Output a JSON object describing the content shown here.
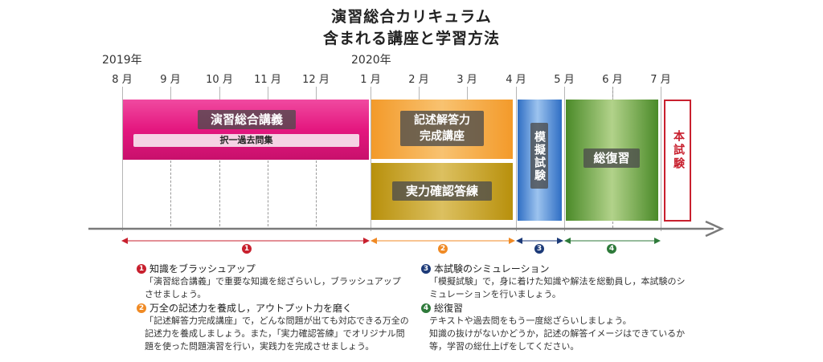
{
  "title": {
    "line1": "演習総合カリキュラム",
    "line2": "含まれる講座と学習方法"
  },
  "years": [
    "2019年",
    "2020年"
  ],
  "months": [
    "8 月",
    "9 月",
    "10 月",
    "11 月",
    "12 月",
    "1 月",
    "2 月",
    "3 月",
    "4 月",
    "5 月",
    "6 月",
    "7 月"
  ],
  "blocks": {
    "enshu": {
      "label": "演習総合講義",
      "sub": "択一過去問集",
      "color": "#e4177f"
    },
    "kijutsu": {
      "label": "記述解答力\n完成講座",
      "color": "#f4a93c"
    },
    "jitsuryoku": {
      "label": "実力確認答練",
      "color": "#c7a21c"
    },
    "mogi": {
      "label": "模擬試験",
      "color": "#3f7fd0"
    },
    "fuku": {
      "label": "総復習",
      "color": "#5c9e3a"
    },
    "honshiken": {
      "label": "本試験",
      "color": "#c8202e"
    }
  },
  "phases": [
    {
      "num": "1",
      "color": "#c8202e"
    },
    {
      "num": "2",
      "color": "#f08a24"
    },
    {
      "num": "3",
      "color": "#1c3a78"
    },
    {
      "num": "4",
      "color": "#2e7a3a"
    }
  ],
  "notes": [
    {
      "num": "1",
      "color": "#c8202e",
      "head": "知識をブラッシュアップ",
      "body": [
        "「演習総合講義」で重要な知識を総ざらいし，ブラッシュアップ",
        "させましょう。"
      ]
    },
    {
      "num": "2",
      "color": "#f08a24",
      "head": "万全の記述力を養成し，アウトプット力を磨く",
      "body": [
        "「記述解答力完成講座」で，どんな問題が出ても対応できる万全の",
        "記述力を養成しましょう。また，「実力確認答練」でオリジナル問",
        "題を使った問題演習を行い，実践力を完成させましょう。"
      ]
    },
    {
      "num": "3",
      "color": "#1c3a78",
      "head": "本試験のシミュレーション",
      "body": [
        "「模擬試験」で，身に着けた知識や解法を総動員し，本試験のシ",
        "ミュレーションを行いましょう。"
      ]
    },
    {
      "num": "4",
      "color": "#2e7a3a",
      "head": "総復習",
      "body": [
        "テキストや過去問をもう一度総ざらいしましょう。",
        "知識の抜けがないかどうか，記述の解答イメージはできているか",
        "等，学習の総仕上げをしてください。"
      ]
    }
  ]
}
